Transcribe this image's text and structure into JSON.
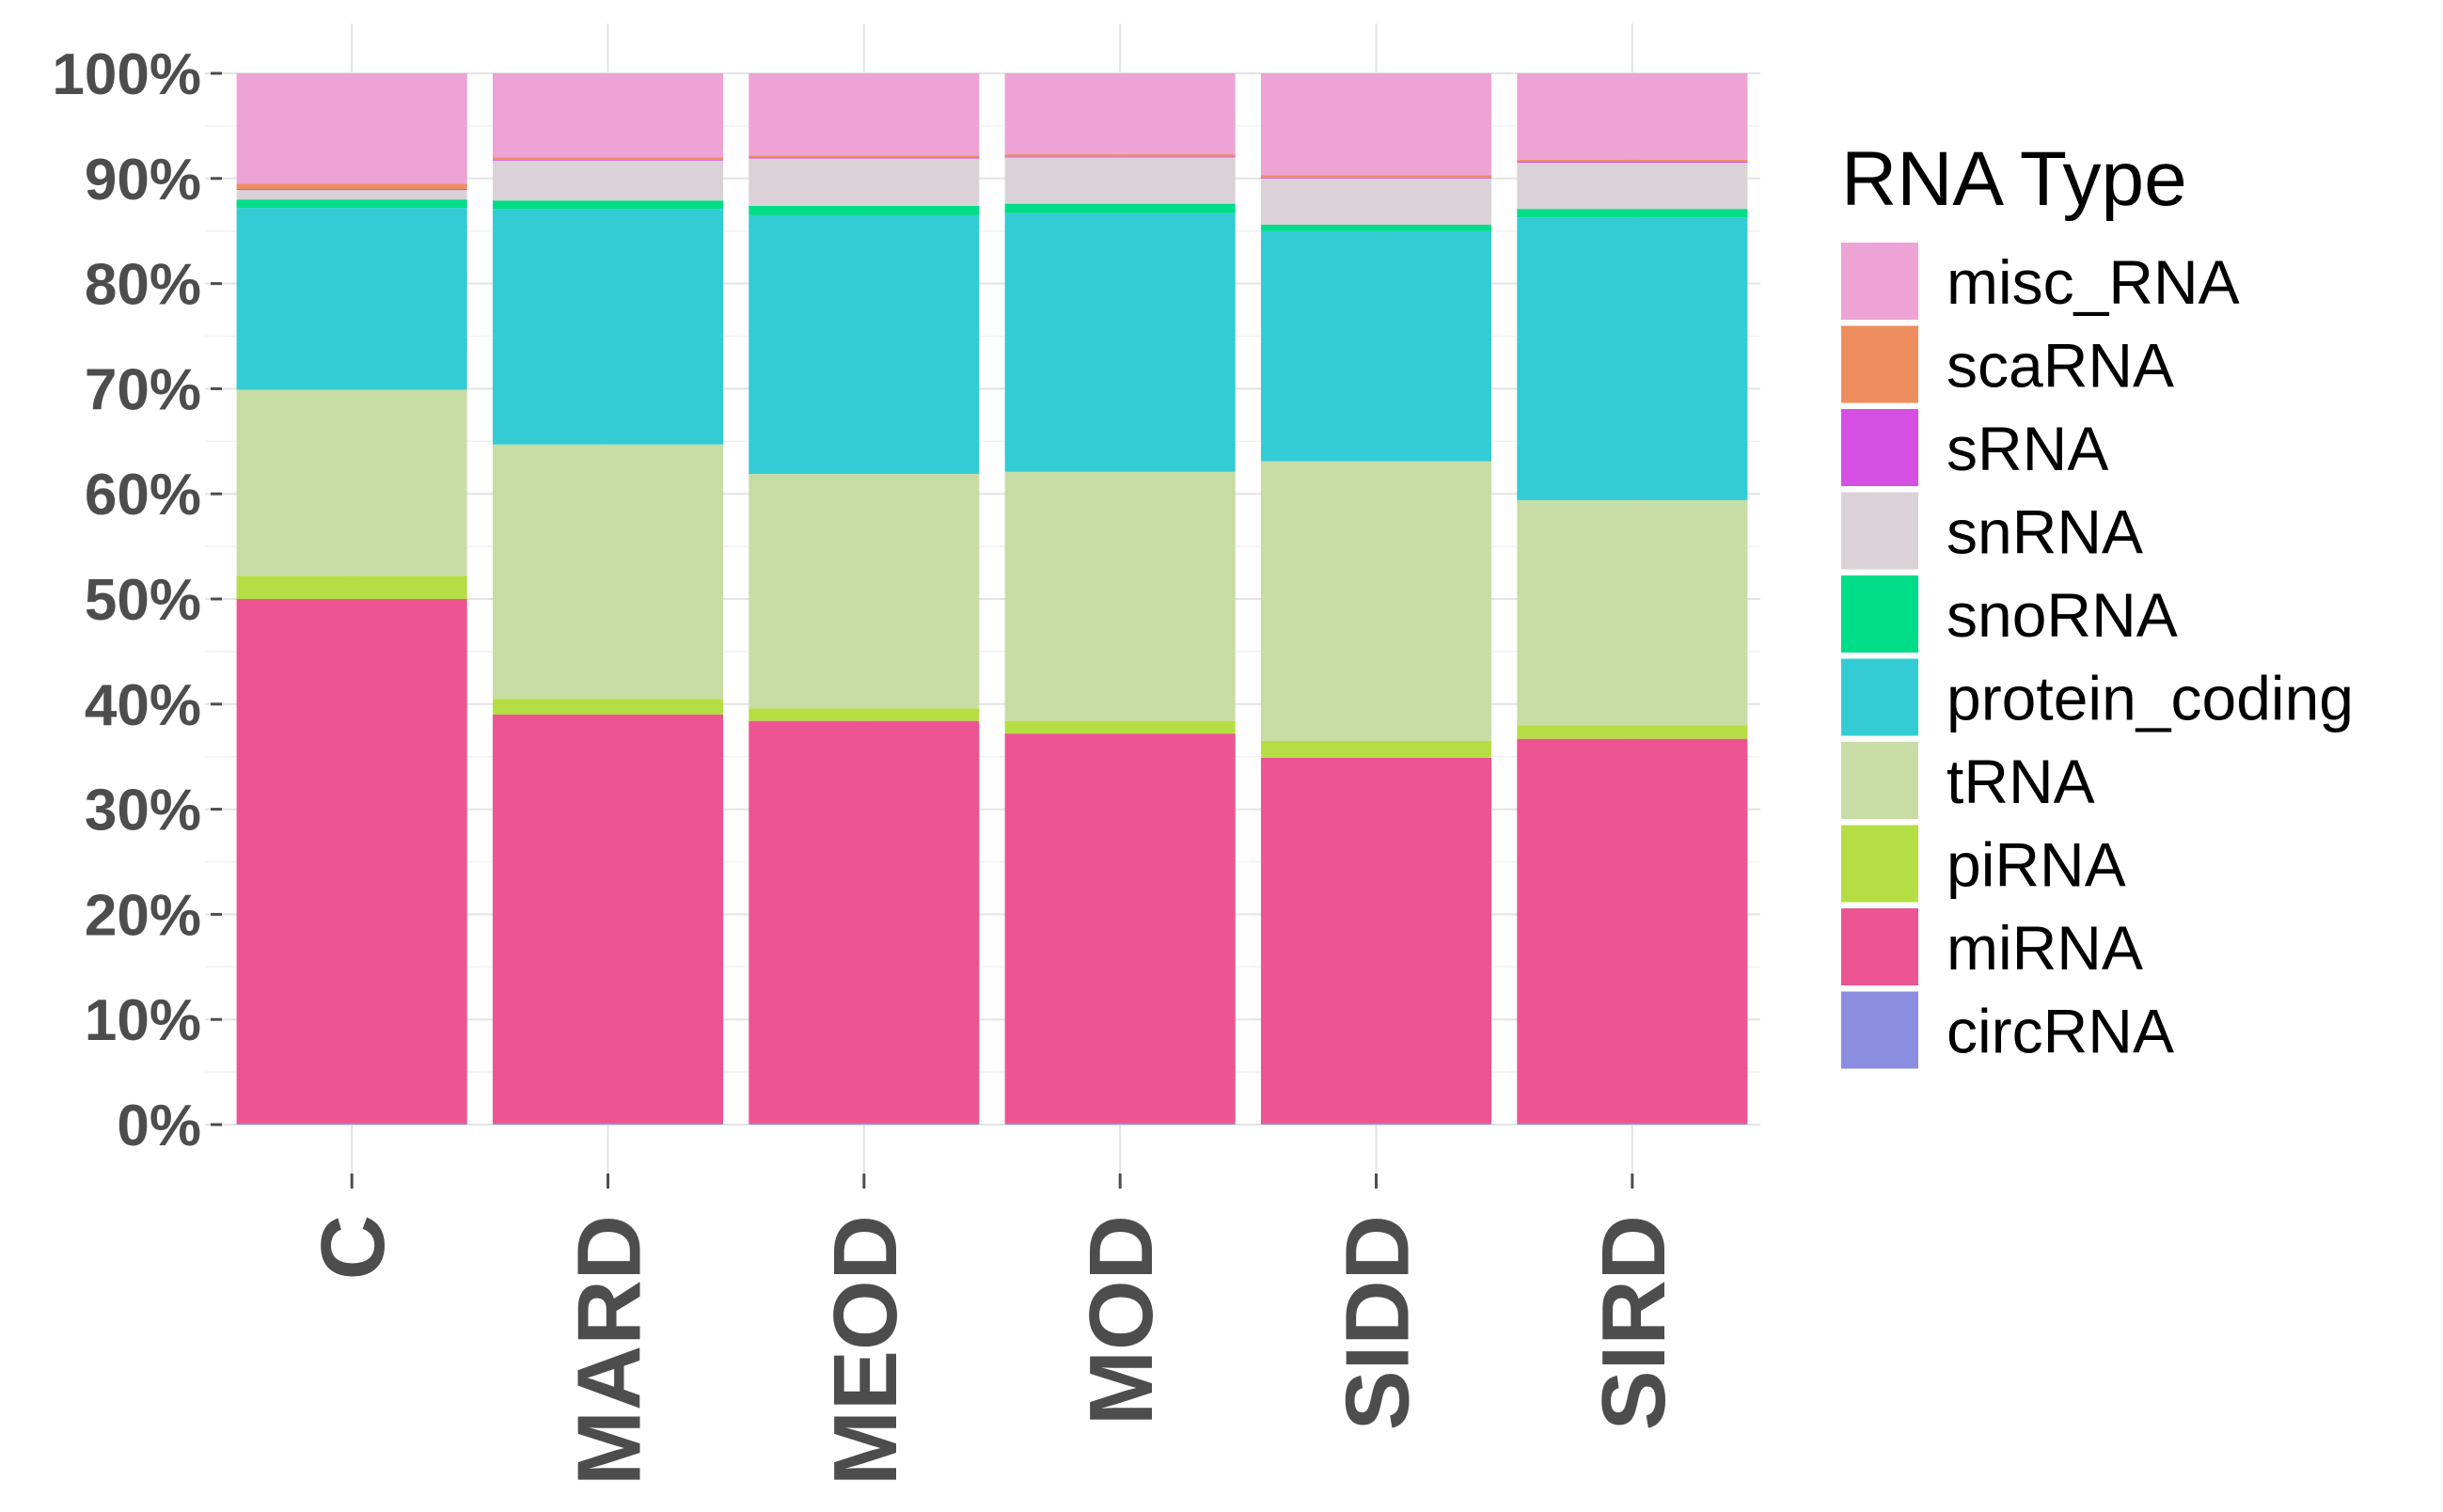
{
  "chart_data": {
    "type": "bar",
    "stacked": true,
    "title": "",
    "xlabel": "",
    "ylabel": "",
    "ylim": [
      0,
      100
    ],
    "yticks": [
      "0%",
      "10%",
      "20%",
      "30%",
      "40%",
      "50%",
      "60%",
      "70%",
      "80%",
      "90%",
      "100%"
    ],
    "categories": [
      "C",
      "MARD",
      "MEOD",
      "MOD",
      "SIDD",
      "SIRD"
    ],
    "legend_title": "RNA Type",
    "legend_position": "right",
    "series": [
      {
        "name": "circRNA",
        "color": "#8b8ddf",
        "values": [
          0.1,
          0.1,
          0.1,
          0.1,
          0.1,
          0.1
        ]
      },
      {
        "name": "miRNA",
        "color": "#ec5591",
        "values": [
          49.9,
          38.9,
          38.3,
          37.1,
          34.8,
          36.6
        ]
      },
      {
        "name": "piRNA",
        "color": "#b5de45",
        "values": [
          2.2,
          1.5,
          1.2,
          1.2,
          1.6,
          1.3
        ]
      },
      {
        "name": "tRNA",
        "color": "#c8dca6",
        "values": [
          17.7,
          24.2,
          22.3,
          23.7,
          26.6,
          21.4
        ]
      },
      {
        "name": "protein_coding",
        "color": "#33ccd4",
        "values": [
          17.3,
          22.4,
          24.6,
          24.6,
          21.9,
          26.9
        ]
      },
      {
        "name": "snoRNA",
        "color": "#00dd88",
        "values": [
          0.8,
          0.8,
          0.9,
          0.9,
          0.6,
          0.8
        ]
      },
      {
        "name": "snRNA",
        "color": "#dad2d6",
        "values": [
          0.9,
          3.8,
          4.5,
          4.4,
          4.4,
          4.4
        ]
      },
      {
        "name": "sRNA",
        "color": "#d44fe2",
        "values": [
          0.1,
          0.1,
          0.1,
          0.1,
          0.1,
          0.1
        ]
      },
      {
        "name": "scaRNA",
        "color": "#ee8e5f",
        "values": [
          0.5,
          0.2,
          0.2,
          0.2,
          0.2,
          0.2
        ]
      },
      {
        "name": "misc_RNA",
        "color": "#eda3d3",
        "values": [
          10.5,
          8.0,
          7.8,
          7.7,
          9.7,
          8.2
        ]
      }
    ],
    "legend_order": [
      "misc_RNA",
      "scaRNA",
      "sRNA",
      "snRNA",
      "snoRNA",
      "protein_coding",
      "tRNA",
      "piRNA",
      "miRNA",
      "circRNA"
    ]
  }
}
